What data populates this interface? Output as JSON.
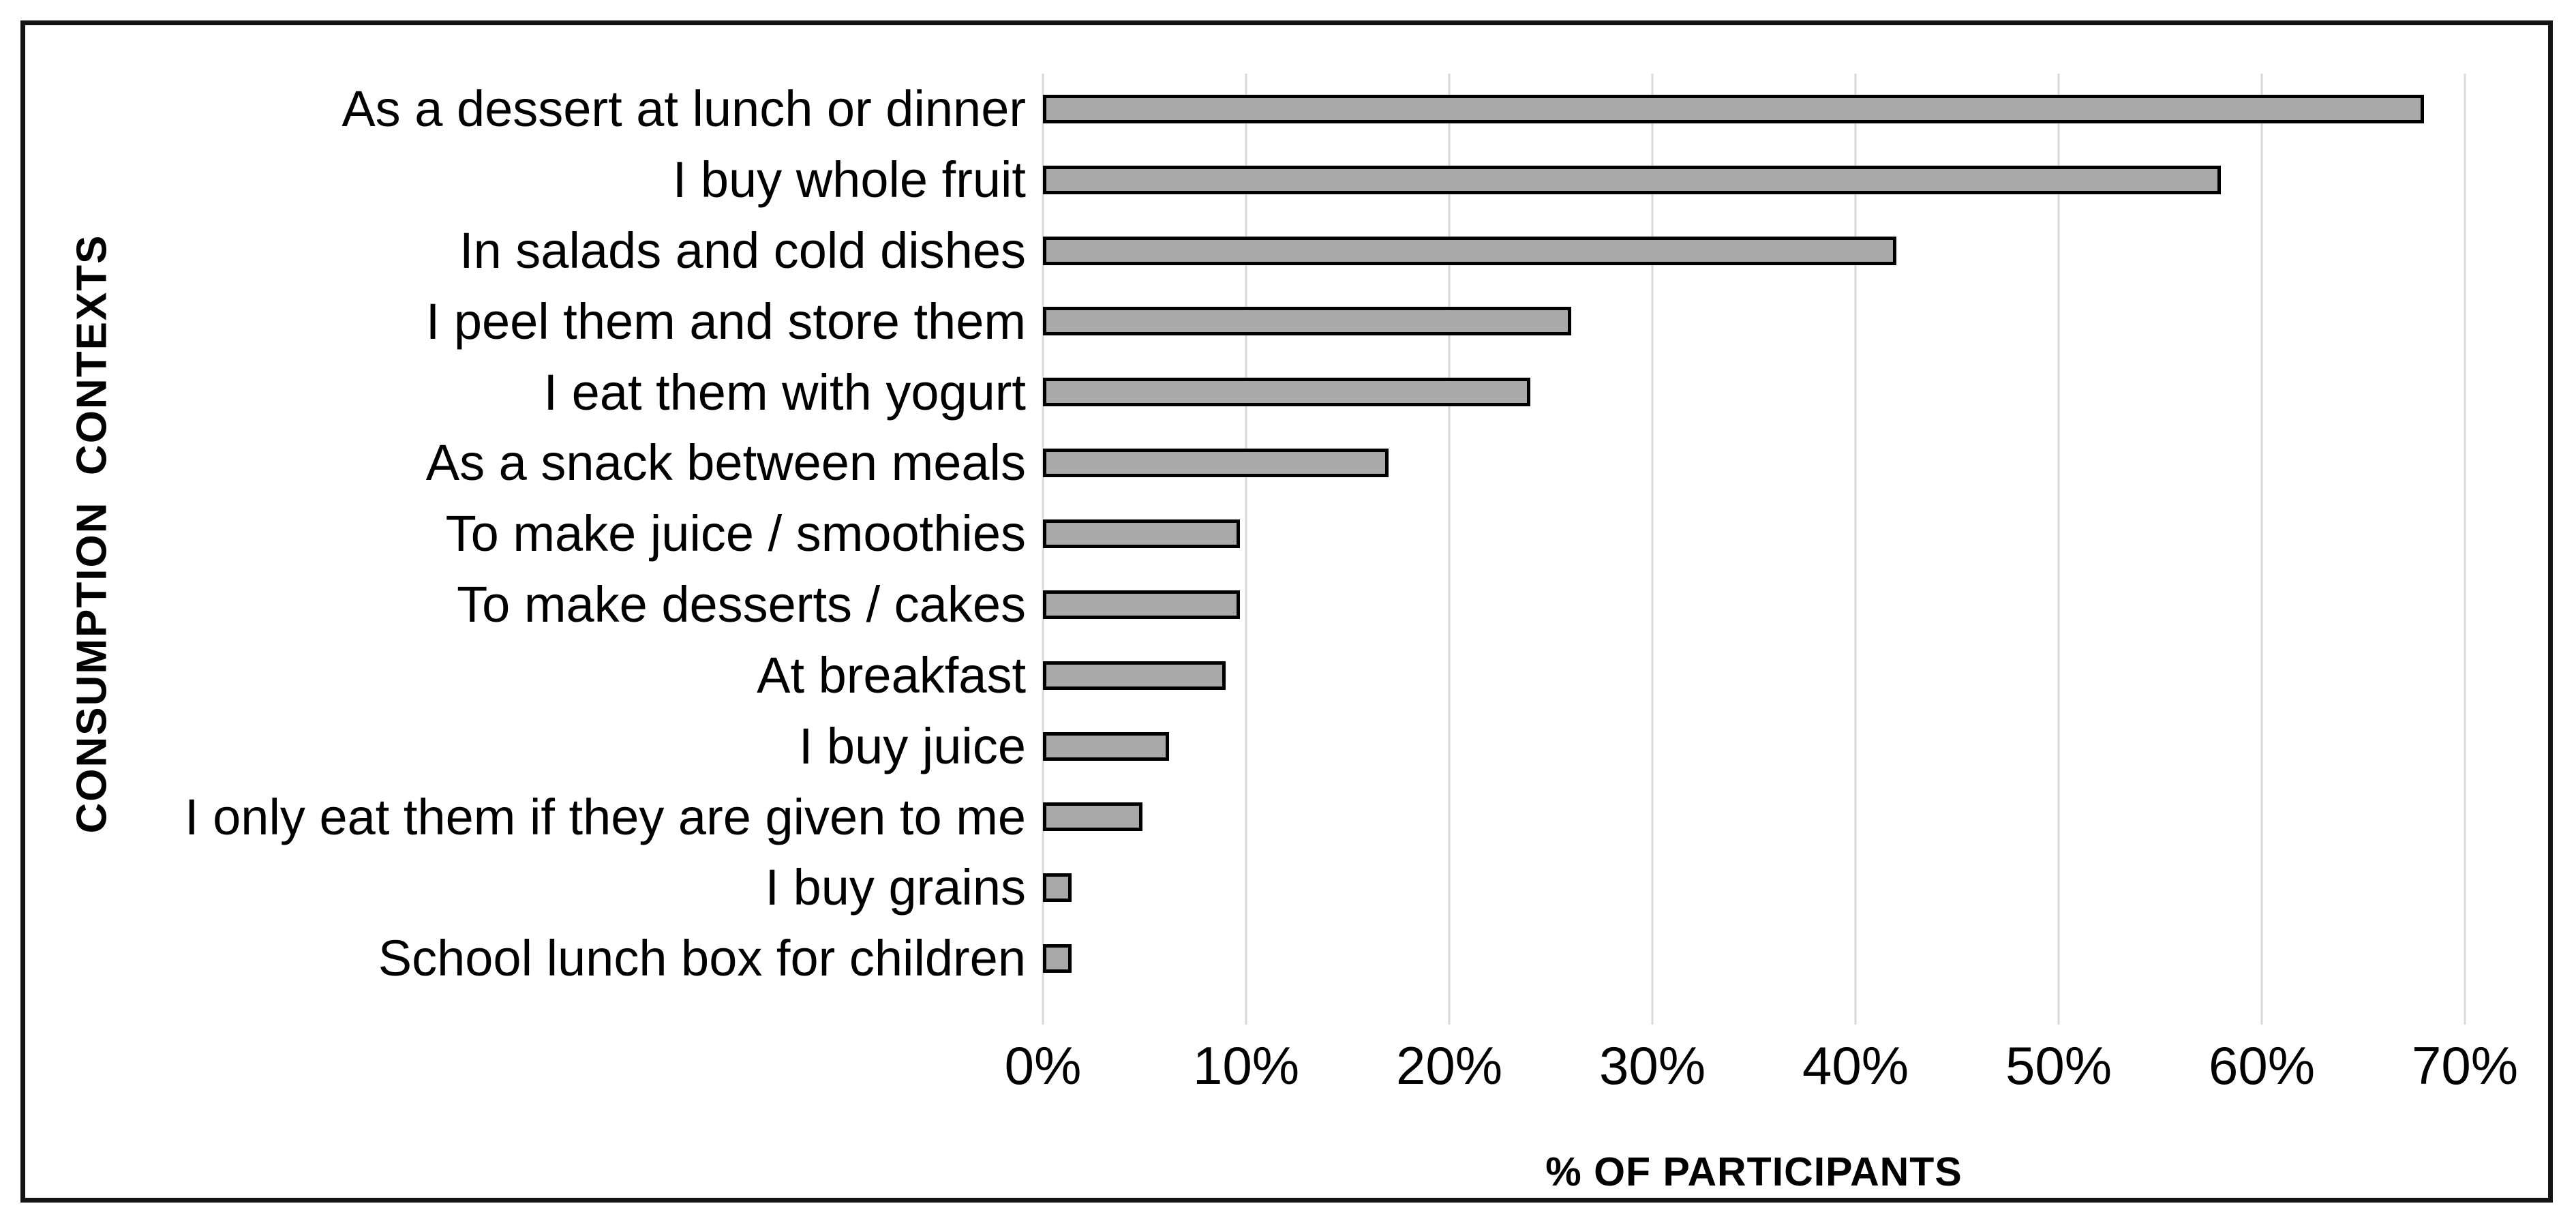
{
  "figure": {
    "kind": "horizontal-bar-chart",
    "background": "#ffffff",
    "frame_border_color": "#141414"
  },
  "chart_data": {
    "type": "bar",
    "orientation": "horizontal",
    "title": "",
    "xlabel": "% OF PARTICIPANTS",
    "ylabel": "CONSUMPTION  CONTEXTS",
    "categories": [
      "As a dessert at lunch or dinner",
      "I buy whole fruit",
      "In salads and cold dishes",
      "I peel them and store them",
      "I eat them with yogurt",
      "As a snack between meals",
      "To make juice / smoothies",
      "To make desserts / cakes",
      "At breakfast",
      "I buy juice",
      "I only eat them if they are given to me",
      "I buy grains",
      "School lunch box for children"
    ],
    "values": [
      68,
      58,
      42,
      26,
      24,
      17,
      9.7,
      9.7,
      9,
      6.2,
      4.9,
      1.4,
      1.4
    ],
    "value_unit": "%",
    "xlim": [
      0,
      70
    ],
    "x_tick_values": [
      0,
      10,
      20,
      30,
      40,
      50,
      60,
      70
    ],
    "x_tick_labels": [
      "0%",
      "10%",
      "20%",
      "30%",
      "40%",
      "50%",
      "60%",
      "70%"
    ],
    "grid": "vertical",
    "legend": "none",
    "bar_fill_color": "#a9a9a9",
    "bar_border_color": "#000000",
    "gridline_color": "#d9d9d9"
  }
}
